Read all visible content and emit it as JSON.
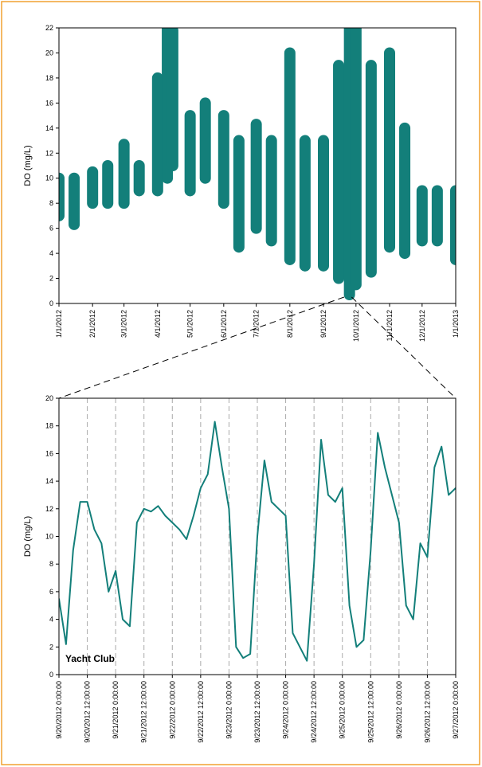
{
  "chart_data": [
    {
      "type": "range",
      "ylabel": "DO (mg/L)",
      "color": "#137f7a",
      "x": [
        "1/1/2012",
        "1/15/2012",
        "2/1/2012",
        "2/15/2012",
        "3/1/2012",
        "3/15/2012",
        "4/1/2012",
        "4/10/2012",
        "4/15/2012",
        "5/1/2012",
        "5/15/2012",
        "6/1/2012",
        "6/15/2012",
        "7/1/2012",
        "7/15/2012",
        "8/1/2012",
        "8/15/2012",
        "9/1/2012",
        "9/15/2012",
        "9/25/2012",
        "10/1/2012",
        "10/15/2012",
        "11/1/2012",
        "11/15/2012",
        "12/1/2012",
        "12/15/2012",
        "1/1/2013"
      ],
      "low": [
        7,
        6.3,
        8,
        8,
        8,
        9,
        9,
        10,
        11,
        9,
        10,
        8,
        4.5,
        6,
        5,
        3.5,
        3,
        3,
        2,
        0.7,
        1.5,
        2.5,
        4.5,
        4,
        5,
        5,
        3.5
      ],
      "high": [
        10,
        10,
        10.5,
        11,
        12.7,
        11,
        18,
        22,
        21.8,
        15,
        16,
        15,
        13,
        14.3,
        13,
        20,
        13,
        13,
        19,
        22,
        22,
        19,
        20,
        14,
        9,
        9,
        9
      ],
      "xlim": [
        "1/1/2012",
        "1/1/2013"
      ],
      "xticks": [
        "1/1/2012",
        "2/1/2012",
        "3/1/2012",
        "4/1/2012",
        "5/1/2012",
        "6/1/2012",
        "7/1/2012",
        "8/1/2012",
        "9/1/2012",
        "10/1/2012",
        "11/1/2012",
        "12/1/2012",
        "1/1/2013"
      ],
      "ylim": [
        0,
        22
      ],
      "yticks": [
        0,
        2,
        4,
        6,
        8,
        10,
        12,
        14,
        16,
        18,
        20,
        22
      ],
      "grid": false
    },
    {
      "type": "line",
      "ylabel": "DO (mg/L)",
      "annotation": "Yacht Club",
      "color": "#137f7a",
      "x": [
        "9/20/2012 0:00:00",
        "9/20/2012 3:00:00",
        "9/20/2012 6:00:00",
        "9/20/2012 9:00:00",
        "9/20/2012 12:00:00",
        "9/20/2012 15:00:00",
        "9/20/2012 18:00:00",
        "9/20/2012 21:00:00",
        "9/21/2012 0:00:00",
        "9/21/2012 3:00:00",
        "9/21/2012 6:00:00",
        "9/21/2012 9:00:00",
        "9/21/2012 12:00:00",
        "9/21/2012 15:00:00",
        "9/21/2012 18:00:00",
        "9/21/2012 21:00:00",
        "9/22/2012 0:00:00",
        "9/22/2012 3:00:00",
        "9/22/2012 6:00:00",
        "9/22/2012 9:00:00",
        "9/22/2012 12:00:00",
        "9/22/2012 15:00:00",
        "9/22/2012 18:00:00",
        "9/22/2012 21:00:00",
        "9/23/2012 0:00:00",
        "9/23/2012 3:00:00",
        "9/23/2012 6:00:00",
        "9/23/2012 9:00:00",
        "9/23/2012 12:00:00",
        "9/23/2012 15:00:00",
        "9/23/2012 18:00:00",
        "9/23/2012 21:00:00",
        "9/24/2012 0:00:00",
        "9/24/2012 3:00:00",
        "9/24/2012 6:00:00",
        "9/24/2012 9:00:00",
        "9/24/2012 12:00:00",
        "9/24/2012 15:00:00",
        "9/24/2012 18:00:00",
        "9/24/2012 21:00:00",
        "9/25/2012 0:00:00",
        "9/25/2012 3:00:00",
        "9/25/2012 6:00:00",
        "9/25/2012 9:00:00",
        "9/25/2012 12:00:00",
        "9/25/2012 15:00:00",
        "9/25/2012 18:00:00",
        "9/25/2012 21:00:00",
        "9/26/2012 0:00:00",
        "9/26/2012 3:00:00",
        "9/26/2012 6:00:00",
        "9/26/2012 9:00:00",
        "9/26/2012 12:00:00",
        "9/26/2012 15:00:00",
        "9/26/2012 18:00:00",
        "9/26/2012 21:00:00",
        "9/27/2012 0:00:00"
      ],
      "values": [
        5.5,
        2.2,
        9,
        12.5,
        12.5,
        10.5,
        9.5,
        6,
        7.5,
        4,
        3.5,
        11,
        12,
        11.8,
        12.2,
        11.5,
        11,
        10.5,
        9.8,
        11.5,
        13.5,
        14.5,
        18.3,
        15,
        12,
        2,
        1.2,
        1.5,
        10,
        15.5,
        12.5,
        12,
        11.5,
        3,
        2,
        1,
        8,
        17,
        13,
        12.5,
        13.5,
        5,
        2,
        2.5,
        9,
        17.5,
        15,
        13,
        11,
        5,
        4,
        9.5,
        8.5,
        15,
        16.5,
        13,
        13.5
      ],
      "xlim": [
        "9/20/2012 0:00:00",
        "9/27/2012 0:00:00"
      ],
      "xticks": [
        "9/20/2012 0:00:00",
        "9/20/2012 12:00:00",
        "9/21/2012 0:00:00",
        "9/21/2012 12:00:00",
        "9/22/2012 0:00:00",
        "9/22/2012 12:00:00",
        "9/23/2012 0:00:00",
        "9/23/2012 12:00:00",
        "9/24/2012 0:00:00",
        "9/24/2012 12:00:00",
        "9/25/2012 0:00:00",
        "9/25/2012 12:00:00",
        "9/26/2012 0:00:00",
        "9/26/2012 12:00:00",
        "9/27/2012 0:00:00"
      ],
      "ylim": [
        0,
        20
      ],
      "yticks": [
        0,
        2,
        4,
        6,
        8,
        10,
        12,
        14,
        16,
        18,
        20
      ],
      "grid": true
    }
  ]
}
